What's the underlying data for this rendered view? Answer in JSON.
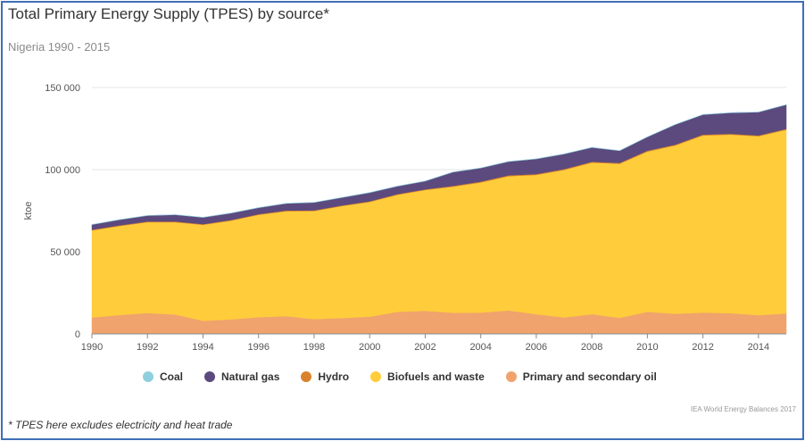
{
  "header": {
    "title": "Total Primary Energy Supply (TPES) by source*",
    "subtitle": "Nigeria 1990 - 2015"
  },
  "footer": {
    "source": "IEA World Energy Balances 2017",
    "footnote": "* TPES here excludes electricity and heat trade"
  },
  "chart_data": {
    "type": "area",
    "stacked": true,
    "ylabel": "ktoe",
    "ylim": [
      0,
      150000
    ],
    "xlim": [
      1990,
      2015
    ],
    "y_ticks": [
      0,
      50000,
      100000,
      150000
    ],
    "y_tick_labels": [
      "0",
      "50 000",
      "100 000",
      "150 000"
    ],
    "x_ticks": [
      1990,
      1992,
      1994,
      1996,
      1998,
      2000,
      2002,
      2004,
      2006,
      2008,
      2010,
      2012,
      2014
    ],
    "grid": "horizontal",
    "legend_position": "bottom",
    "x": [
      1990,
      1991,
      1992,
      1993,
      1994,
      1995,
      1996,
      1997,
      1998,
      1999,
      2000,
      2001,
      2002,
      2003,
      2004,
      2005,
      2006,
      2007,
      2008,
      2009,
      2010,
      2011,
      2012,
      2013,
      2014,
      2015
    ],
    "series": [
      {
        "name": "Primary and secondary oil",
        "color": "#f0a36c",
        "values": [
          10000,
          11500,
          12700,
          11800,
          8000,
          8800,
          10200,
          10800,
          9000,
          9700,
          10500,
          13400,
          14000,
          12900,
          13000,
          14300,
          12000,
          10000,
          12000,
          9800,
          13400,
          12300,
          13000,
          12600,
          11400,
          12500
        ]
      },
      {
        "name": "Biofuels and waste",
        "color": "#ffcd3b",
        "values": [
          53000,
          54200,
          55300,
          56200,
          58400,
          60100,
          62300,
          63900,
          65800,
          68100,
          69800,
          71300,
          73600,
          76700,
          79200,
          81700,
          84800,
          89800,
          92300,
          93800,
          97600,
          102400,
          107800,
          108700,
          108900,
          111800
        ]
      },
      {
        "name": "Hydro",
        "color": "#d9822b",
        "values": [
          400,
          400,
          400,
          400,
          400,
          400,
          400,
          400,
          400,
          400,
          400,
          400,
          400,
          500,
          500,
          500,
          500,
          500,
          500,
          500,
          500,
          500,
          500,
          500,
          500,
          500
        ]
      },
      {
        "name": "Natural gas",
        "color": "#5c4a7e",
        "values": [
          3100,
          3400,
          3600,
          4100,
          4100,
          4200,
          3900,
          4300,
          4800,
          4800,
          5300,
          4800,
          5000,
          8400,
          8300,
          8400,
          9200,
          9200,
          8700,
          7400,
          8400,
          12200,
          12200,
          12800,
          14200,
          14700
        ]
      },
      {
        "name": "Coal",
        "color": "#8fd0de",
        "values": [
          50,
          50,
          50,
          50,
          50,
          30,
          30,
          30,
          30,
          30,
          30,
          30,
          30,
          30,
          30,
          30,
          30,
          30,
          30,
          30,
          30,
          30,
          30,
          30,
          30,
          30
        ]
      }
    ],
    "legend_order": [
      "Coal",
      "Natural gas",
      "Hydro",
      "Biofuels and waste",
      "Primary and secondary oil"
    ]
  }
}
